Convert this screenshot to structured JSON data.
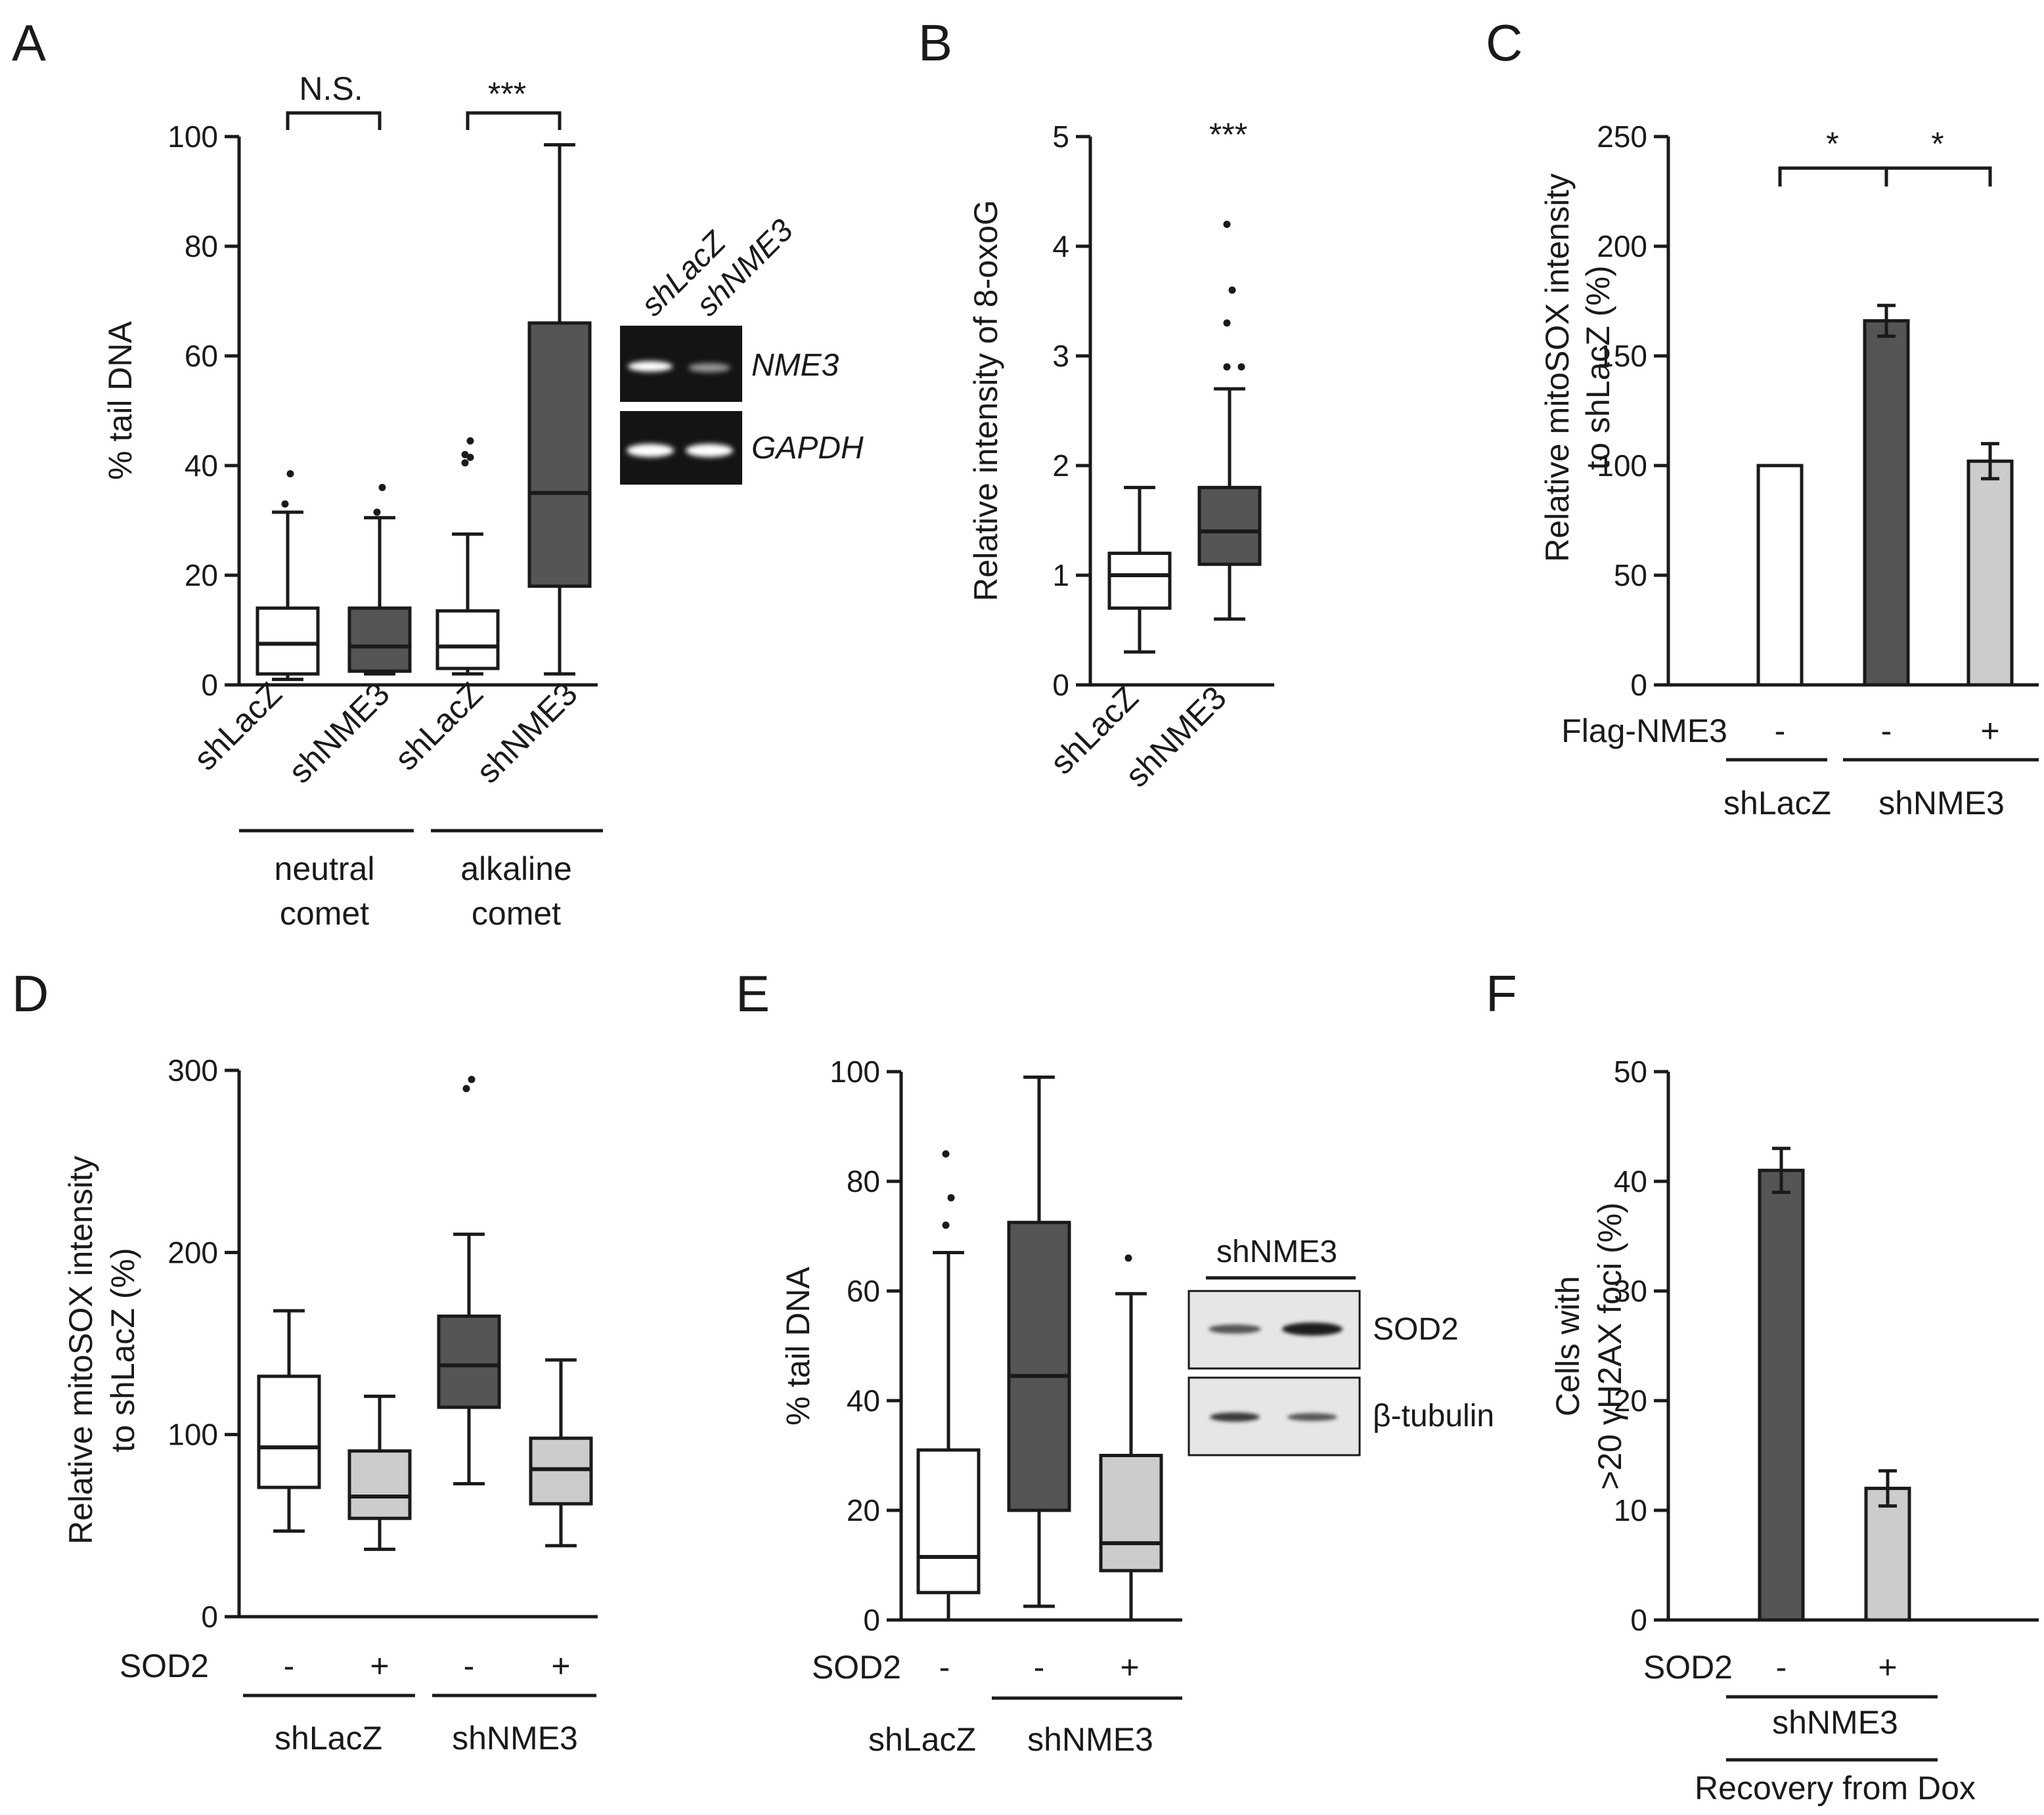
{
  "colors": {
    "white": "#ffffff",
    "dark_gray": "#555555",
    "light_gray": "#cccccc",
    "line": "#1a1a1a"
  },
  "chart_data": [
    {
      "panel": "A",
      "type": "boxplot",
      "ylabel": "% tail DNA",
      "ylim": [
        0,
        100
      ],
      "yticks": [
        0,
        20,
        40,
        60,
        80,
        100
      ],
      "categories": [
        "shLacZ",
        "shNME3",
        "shLacZ",
        "shNME3"
      ],
      "groups": [
        {
          "label_lines": [
            "neutral",
            "comet"
          ],
          "members": [
            0,
            1
          ]
        },
        {
          "label_lines": [
            "alkaline",
            "comet"
          ],
          "members": [
            2,
            3
          ]
        }
      ],
      "boxes": [
        {
          "name": "shLacZ",
          "fill": "white",
          "whisker_low": 1,
          "q1": 2,
          "median": 7.5,
          "q3": 14,
          "whisker_high": 31.5,
          "outliers": [
            33,
            38.5
          ]
        },
        {
          "name": "shNME3",
          "fill": "dark_gray",
          "whisker_low": 2,
          "q1": 2.5,
          "median": 7,
          "q3": 14,
          "whisker_high": 30.5,
          "outliers": [
            31.5,
            36
          ]
        },
        {
          "name": "shLacZ",
          "fill": "white",
          "whisker_low": 2,
          "q1": 3,
          "median": 7,
          "q3": 13.5,
          "whisker_high": 27.5,
          "outliers": [
            40.5,
            41.5,
            42,
            44.5
          ]
        },
        {
          "name": "shNME3",
          "fill": "dark_gray",
          "whisker_low": 2,
          "q1": 18,
          "median": 35,
          "q3": 66,
          "whisker_high": 98.5,
          "outliers": []
        }
      ],
      "significance": [
        {
          "from": 0,
          "to": 1,
          "label": "N.S."
        },
        {
          "from": 2,
          "to": 3,
          "label": "***"
        }
      ],
      "inset": {
        "lane_labels": [
          "shLacZ",
          "shNME3"
        ],
        "rows": [
          {
            "label": "NME3",
            "band_intensity": [
              1.0,
              0.4
            ]
          },
          {
            "label": "GAPDH",
            "band_intensity": [
              1.0,
              1.0
            ]
          }
        ]
      }
    },
    {
      "panel": "B",
      "type": "boxplot",
      "ylabel": "Relative intensity of 8-oxoG",
      "ylim": [
        0,
        5
      ],
      "yticks": [
        0,
        1,
        2,
        3,
        4,
        5
      ],
      "categories": [
        "shLacZ",
        "shNME3"
      ],
      "boxes": [
        {
          "name": "shLacZ",
          "fill": "white",
          "whisker_low": 0.3,
          "q1": 0.7,
          "median": 1.0,
          "q3": 1.2,
          "whisker_high": 1.8,
          "outliers": []
        },
        {
          "name": "shNME3",
          "fill": "dark_gray",
          "whisker_low": 0.6,
          "q1": 1.1,
          "median": 1.4,
          "q3": 1.8,
          "whisker_high": 2.7,
          "outliers": [
            2.9,
            2.9,
            3.3,
            3.6,
            4.2
          ]
        }
      ],
      "significance": [
        {
          "over": 1,
          "label": "***"
        }
      ]
    },
    {
      "panel": "C",
      "type": "bar",
      "ylabel_lines": [
        "Relative mitoSOX intensity",
        "to shLacZ (%)"
      ],
      "ylim": [
        0,
        250
      ],
      "yticks": [
        0,
        50,
        100,
        150,
        200,
        250
      ],
      "condition_label": "Flag-NME3",
      "conditions": [
        "-",
        "-",
        "+"
      ],
      "groups": [
        {
          "label": "shLacZ",
          "members": [
            0
          ]
        },
        {
          "label": "shNME3",
          "members": [
            1,
            2
          ]
        }
      ],
      "bars": [
        {
          "value": 100,
          "error": 0,
          "fill": "white"
        },
        {
          "value": 166,
          "error": 7,
          "fill": "dark_gray"
        },
        {
          "value": 102,
          "error": 8,
          "fill": "light_gray"
        }
      ],
      "significance": [
        {
          "from": 0,
          "to": 1,
          "label": "*"
        },
        {
          "from": 1,
          "to": 2,
          "label": "*"
        }
      ]
    },
    {
      "panel": "D",
      "type": "boxplot",
      "ylabel_lines": [
        "Relative mitoSOX intensity",
        "to shLacZ (%)"
      ],
      "ylim": [
        0,
        300
      ],
      "yticks": [
        0,
        100,
        200,
        300
      ],
      "condition_label": "SOD2",
      "conditions": [
        "-",
        "+",
        "-",
        "+"
      ],
      "groups": [
        {
          "label": "shLacZ",
          "members": [
            0,
            1
          ]
        },
        {
          "label": "shNME3",
          "members": [
            2,
            3
          ]
        }
      ],
      "boxes": [
        {
          "fill": "white",
          "whisker_low": 47,
          "q1": 71,
          "median": 93,
          "q3": 132,
          "whisker_high": 168,
          "outliers": []
        },
        {
          "fill": "light_gray",
          "whisker_low": 37,
          "q1": 54,
          "median": 66,
          "q3": 91,
          "whisker_high": 121,
          "outliers": []
        },
        {
          "fill": "dark_gray",
          "whisker_low": 73,
          "q1": 115,
          "median": 138,
          "q3": 165,
          "whisker_high": 210,
          "outliers": [
            290,
            295
          ]
        },
        {
          "fill": "light_gray",
          "whisker_low": 39,
          "q1": 62,
          "median": 81,
          "q3": 98,
          "whisker_high": 141,
          "outliers": []
        }
      ]
    },
    {
      "panel": "E",
      "type": "boxplot",
      "ylabel": "% tail DNA",
      "ylim": [
        0,
        100
      ],
      "yticks": [
        0,
        20,
        40,
        60,
        80,
        100
      ],
      "condition_label": "SOD2",
      "conditions": [
        "-",
        "-",
        "+"
      ],
      "groups": [
        {
          "label": "shLacZ",
          "members": [
            0
          ]
        },
        {
          "label": "shNME3",
          "members": [
            1,
            2
          ]
        }
      ],
      "boxes": [
        {
          "fill": "white",
          "whisker_low": 0,
          "q1": 5,
          "median": 11.5,
          "q3": 31,
          "whisker_high": 67,
          "outliers": [
            72,
            77,
            85
          ]
        },
        {
          "fill": "dark_gray",
          "whisker_low": 2.5,
          "q1": 20,
          "median": 44.5,
          "q3": 72.5,
          "whisker_high": 99,
          "outliers": []
        },
        {
          "fill": "light_gray",
          "whisker_low": 0,
          "q1": 9,
          "median": 14,
          "q3": 30,
          "whisker_high": 59.5,
          "outliers": [
            66
          ]
        }
      ],
      "inset": {
        "title": "shNME3",
        "rows": [
          {
            "label": "SOD2",
            "band_intensity": [
              0.6,
              1.0
            ]
          },
          {
            "label": "β-tubulin",
            "band_intensity": [
              0.8,
              0.6
            ]
          }
        ]
      }
    },
    {
      "panel": "F",
      "type": "bar",
      "ylabel_lines": [
        "Cells with",
        ">20 γH2AX foci (%)"
      ],
      "ylim": [
        0,
        50
      ],
      "yticks": [
        0,
        10,
        20,
        30,
        40,
        50
      ],
      "condition_label": "SOD2",
      "conditions": [
        "-",
        "+"
      ],
      "group_label": "shNME3",
      "footer": "Recovery from Dox",
      "bars": [
        {
          "value": 41,
          "error": 2,
          "fill": "dark_gray"
        },
        {
          "value": 12,
          "error": 1.6,
          "fill": "light_gray"
        }
      ]
    }
  ]
}
